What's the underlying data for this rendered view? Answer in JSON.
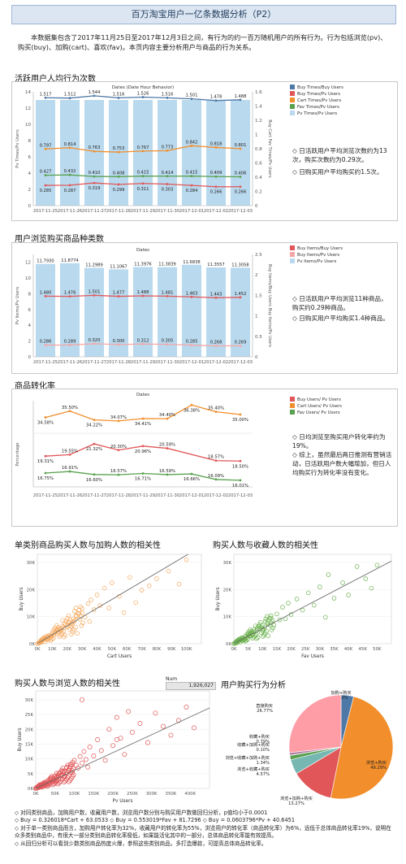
{
  "page": {
    "title": "百万淘宝用户一亿条数据分析（P2）",
    "intro": "本数据集包含了2017年11月25日至2017年12月3日之间，有行为的约一百万随机用户的所有行为。行为包括浏览(pv)、购买(buy)、加购(cart)、喜欢(fav)。本页内容主要分析用户与商品的行为关系。"
  },
  "sections": {
    "s1": "活跃用户人均行为次数",
    "s2": "用户浏览购买商品种类数",
    "s3": "商品转化率",
    "s4": "单类别商品购买人数与加购人数的相关性",
    "s5": "购买人数与收藏人数的相关性",
    "s6": "购买人数与浏览人数的相关性",
    "s7": "用户购买行为分析"
  },
  "notes": {
    "n1": "◇ 日活跃用户平均浏览次数约为13次，购买次数约为0.29次。",
    "n2": "◇ 日购买用户平均购买约1.5次。",
    "n3": "◇ 日活跃用户平均浏览11种商品，购买约0.29种商品。",
    "n4": "◇ 日购买用户平均购买1.4种商品。",
    "n5": "◇ 日均浏览至购买用户转化率约为19%。",
    "n6": "◇ 综上，虽然最后两日推测有营销活动，日活跃用户数大幅增加，但日人均购买行为转化率没有变化。"
  },
  "num_legend": {
    "label": "Num",
    "value": "1,926,027"
  },
  "footer": [
    "◇ 对同类别商品，加购用户数，收藏用户数，浏览用户数分别与购买用户数做回归分析，p值均小于0.0001",
    "◇ Buy = 0.326018*Cart + 63.0533  ◇ Buy = 0.553019*Fav + 81.7296  ◇ Buy = 0.0603796*Pv + 40.6451",
    "◇ 对于单一类别商品而言，加购用户转化率为32%，收藏用户的转化率为55%，浏览用户的转化率（商品转化率）为6%，远低于总体商品转化率19%，说明在众多类别商品中，有很大一部分类别商品转化率极低，如果能活化其中的一部分，总体商品转化率能有效提高。",
    "◇ 从回归分析可以看到少数类别商品热度火爆，参照这些类别商品，多打造爆款，可提高总体商品转化率。"
  ],
  "chart_data": [
    {
      "type": "line",
      "title": "Dates (Date Hour Behavior)",
      "categories": [
        "2017-11-25",
        "2017-11-26",
        "2017-11-27",
        "2017-11-28",
        "2017-11-29",
        "2017-11-30",
        "2017-12-01",
        "2017-12-02",
        "2017-12-03"
      ],
      "ylabel": "Pv Times/Pv Users",
      "y2label": "Buy Cart Fav Times/Pv Users",
      "ylim": [
        0,
        14
      ],
      "y2lim": [
        0,
        1.6
      ],
      "bars": {
        "name": "Pv Times/Pv Users",
        "values": [
          13,
          13,
          13,
          13,
          13,
          13,
          13,
          13,
          13
        ],
        "color": "#b9d9ee"
      },
      "series": [
        {
          "name": "Buy Times/Buy Users",
          "axis": "y2",
          "values": [
            1.517,
            1.512,
            1.544,
            1.516,
            1.526,
            1.516,
            1.501,
            1.478,
            1.488
          ],
          "color": "#4e79a7"
        },
        {
          "name": "Buy Times/Pv Users",
          "axis": "y2",
          "values": [
            0.285,
            0.287,
            0.319,
            0.299,
            0.311,
            0.303,
            0.284,
            0.266,
            0.266
          ],
          "color": "#e15759"
        },
        {
          "name": "Cart Times/Pv Users",
          "axis": "y2",
          "values": [
            0.797,
            0.814,
            0.763,
            0.753,
            0.767,
            0.773,
            0.842,
            0.818,
            0.801
          ],
          "color": "#f28e2b"
        },
        {
          "name": "Fav Times/Pv Users",
          "axis": "y2",
          "values": [
            0.427,
            0.432,
            0.41,
            0.408,
            0.415,
            0.414,
            0.415,
            0.409,
            0.406
          ],
          "color": "#59a14f"
        }
      ],
      "legend": [
        "Buy Times/Buy Users",
        "Buy Times/Pv Users",
        "Cart Times/Pv Users",
        "Fav Times/Pv Users",
        "Pv Times/Pv Users"
      ]
    },
    {
      "type": "line",
      "title": "Dates",
      "categories": [
        "2017-11-25",
        "2017-11-26",
        "2017-11-27",
        "2017-11-28",
        "2017-11-29",
        "2017-11-30",
        "2017-12-01",
        "2017-12-02",
        "2017-12-03"
      ],
      "ylabel": "Pv Items/Pv Users",
      "y2label": "Buy Items/Buy Users  Buy Items/Pv Users",
      "ylim": [
        0,
        13
      ],
      "y2lim": [
        0,
        2.5
      ],
      "bars": {
        "name": "Pv Items/Pv Users",
        "values": [
          11.793,
          11.8774,
          11.2989,
          11.1067,
          11.3976,
          11.3839,
          11.6838,
          11.3557,
          11.3058
        ],
        "color": "#b9d9ee"
      },
      "series": [
        {
          "name": "Buy Items/Buy Users",
          "axis": "y2",
          "values": [
            1.48,
            1.476,
            1.501,
            1.477,
            1.488,
            1.481,
            1.463,
            1.443,
            1.452
          ],
          "color": "#e15759"
        },
        {
          "name": "Buy Items/Pv Users",
          "axis": "y2",
          "values": [
            0.286,
            0.289,
            0.32,
            0.3,
            0.312,
            0.305,
            0.285,
            0.268,
            0.269
          ],
          "color": "#f4a6a6"
        }
      ],
      "legend": [
        "Buy Items/Buy Users",
        "Buy Items/Pv Users",
        "Pv Items/Pv Users"
      ]
    },
    {
      "type": "line",
      "title": "Dates",
      "categories": [
        "2017-11-25",
        "2017-11-26",
        "2017-11-27",
        "2017-11-28",
        "2017-11-29",
        "2017-11-30",
        "2017-12-01",
        "2017-12-02",
        "2017-12-03"
      ],
      "ylabel": "Percentage",
      "series": [
        {
          "name": "Buy Users/ Pv Users",
          "values": [
            19.31,
            19.55,
            21.32,
            20.3,
            20.96,
            20.59,
            null,
            18.57,
            18.5
          ],
          "color": "#e15759"
        },
        {
          "name": "Cart Users/ Pv Users",
          "values": [
            34.58,
            35.5,
            34.22,
            34.07,
            34.41,
            34.4,
            36.38,
            35.4,
            35.0
          ],
          "color": "#f28e2b"
        },
        {
          "name": "Fav Users/ Pv Users",
          "values": [
            16.75,
            16.91,
            16.6,
            16.57,
            16.71,
            16.59,
            16.66,
            16.09,
            16.01
          ],
          "color": "#59a14f"
        }
      ],
      "legend": [
        "Buy Users/ Pv Users",
        "Cart Users/ Pv Users",
        "Fav Users/ Pv Users"
      ]
    },
    {
      "type": "scatter",
      "xlabel": "Cart Users",
      "ylabel": "Buy Users",
      "xlim": [
        0,
        110000
      ],
      "ylim": [
        0,
        33000
      ],
      "xticks": [
        "0K",
        "10K",
        "20K",
        "30K",
        "40K",
        "50K",
        "60K",
        "70K",
        "80K",
        "90K",
        "100K"
      ],
      "yticks": [
        "0K",
        "10K",
        "20K",
        "30K"
      ],
      "fit": {
        "slope": 0.326018,
        "intercept": 63.0533
      },
      "color": "#f5a85e",
      "points": [
        [
          1500,
          600
        ],
        [
          2500,
          1100
        ],
        [
          3000,
          900
        ],
        [
          4000,
          1500
        ],
        [
          5000,
          2100
        ],
        [
          6000,
          1800
        ],
        [
          7000,
          2600
        ],
        [
          8000,
          3100
        ],
        [
          9000,
          2800
        ],
        [
          10000,
          3800
        ],
        [
          11000,
          3200
        ],
        [
          12000,
          4200
        ],
        [
          13000,
          4900
        ],
        [
          14000,
          4400
        ],
        [
          15000,
          5600
        ],
        [
          16000,
          5000
        ],
        [
          17000,
          6400
        ],
        [
          18000,
          5800
        ],
        [
          19000,
          7000
        ],
        [
          20000,
          6200
        ],
        [
          21000,
          8000
        ],
        [
          22000,
          6800
        ],
        [
          23000,
          7600
        ],
        [
          24000,
          9200
        ],
        [
          25000,
          8500
        ],
        [
          26000,
          10500
        ],
        [
          28000,
          11200
        ],
        [
          30000,
          13000
        ],
        [
          32000,
          9800
        ],
        [
          34000,
          14800
        ],
        [
          35000,
          8200
        ],
        [
          36000,
          16200
        ],
        [
          38000,
          12600
        ],
        [
          40000,
          18000
        ],
        [
          42000,
          14100
        ],
        [
          45000,
          20500
        ],
        [
          48000,
          13200
        ],
        [
          50000,
          22500
        ],
        [
          55000,
          17500
        ],
        [
          58000,
          11500
        ],
        [
          62000,
          24500
        ],
        [
          66000,
          15200
        ],
        [
          70000,
          19800
        ],
        [
          75000,
          21400
        ],
        [
          80000,
          24000
        ],
        [
          88000,
          26800
        ],
        [
          95000,
          22000
        ],
        [
          100000,
          31000
        ]
      ]
    },
    {
      "type": "scatter",
      "xlabel": "Fav Users",
      "ylabel": "Buy Users",
      "xlim": [
        0,
        55000
      ],
      "ylim": [
        0,
        33000
      ],
      "xticks": [
        "0K",
        "5K",
        "10K",
        "15K",
        "20K",
        "25K",
        "30K",
        "35K",
        "40K",
        "45K",
        "50K"
      ],
      "yticks": [
        "0K",
        "10K",
        "20K",
        "30K"
      ],
      "fit": {
        "slope": 0.553019,
        "intercept": 81.7296
      },
      "color": "#6ab04c",
      "points": [
        [
          500,
          500
        ],
        [
          1000,
          1000
        ],
        [
          1500,
          800
        ],
        [
          2000,
          1600
        ],
        [
          2500,
          1300
        ],
        [
          3000,
          2200
        ],
        [
          3500,
          1800
        ],
        [
          4000,
          2800
        ],
        [
          4500,
          2400
        ],
        [
          5000,
          3500
        ],
        [
          5500,
          2900
        ],
        [
          6000,
          4200
        ],
        [
          6500,
          3600
        ],
        [
          7000,
          5200
        ],
        [
          8000,
          4800
        ],
        [
          9000,
          6500
        ],
        [
          10000,
          5400
        ],
        [
          11000,
          8200
        ],
        [
          12000,
          7100
        ],
        [
          13000,
          9500
        ],
        [
          14000,
          6900
        ],
        [
          15000,
          11000
        ],
        [
          16000,
          8800
        ],
        [
          17000,
          13500
        ],
        [
          18000,
          9200
        ],
        [
          19000,
          15000
        ],
        [
          20000,
          10800
        ],
        [
          22000,
          16500
        ],
        [
          24000,
          12400
        ],
        [
          26000,
          18800
        ],
        [
          28000,
          14200
        ],
        [
          30000,
          21000
        ],
        [
          32000,
          9800
        ],
        [
          33000,
          25500
        ],
        [
          35000,
          16800
        ],
        [
          38000,
          22500
        ],
        [
          40000,
          18000
        ],
        [
          43000,
          28500
        ],
        [
          46000,
          24000
        ],
        [
          48000,
          20500
        ],
        [
          50000,
          29000
        ]
      ]
    },
    {
      "type": "scatter",
      "xlabel": "Pv Users",
      "ylabel": "Buy Users",
      "xlim": [
        0,
        450000
      ],
      "ylim": [
        0,
        33000
      ],
      "xticks": [
        "0K",
        "50K",
        "100K",
        "150K",
        "200K",
        "250K",
        "300K",
        "350K",
        "400K"
      ],
      "yticks": [
        "0K",
        "5K",
        "10K",
        "15K",
        "20K",
        "25K",
        "30K"
      ],
      "fit": {
        "slope": 0.0603796,
        "intercept": 40.6451
      },
      "color": "#e15759",
      "points": [
        [
          5000,
          600
        ],
        [
          10000,
          1200
        ],
        [
          15000,
          900
        ],
        [
          20000,
          1800
        ],
        [
          25000,
          1400
        ],
        [
          30000,
          2500
        ],
        [
          35000,
          2100
        ],
        [
          40000,
          3400
        ],
        [
          45000,
          2800
        ],
        [
          50000,
          4200
        ],
        [
          55000,
          3600
        ],
        [
          60000,
          5000
        ],
        [
          65000,
          4400
        ],
        [
          70000,
          5800
        ],
        [
          75000,
          3900
        ],
        [
          80000,
          7000
        ],
        [
          85000,
          6200
        ],
        [
          90000,
          8200
        ],
        [
          95000,
          5400
        ],
        [
          100000,
          9500
        ],
        [
          105000,
          7800
        ],
        [
          110000,
          6900
        ],
        [
          115000,
          10800
        ],
        [
          120000,
          8600
        ],
        [
          125000,
          12500
        ],
        [
          130000,
          9800
        ],
        [
          135000,
          7200
        ],
        [
          140000,
          14000
        ],
        [
          150000,
          11000
        ],
        [
          160000,
          16500
        ],
        [
          170000,
          12800
        ],
        [
          180000,
          9500
        ],
        [
          190000,
          20000
        ],
        [
          200000,
          14500
        ],
        [
          210000,
          24000
        ],
        [
          220000,
          17000
        ],
        [
          230000,
          11500
        ],
        [
          240000,
          26000
        ],
        [
          250000,
          19000
        ],
        [
          270000,
          22000
        ],
        [
          290000,
          15500
        ],
        [
          310000,
          25500
        ],
        [
          330000,
          21000
        ],
        [
          350000,
          18000
        ],
        [
          370000,
          23000
        ],
        [
          390000,
          27500
        ],
        [
          410000,
          20500
        ],
        [
          120000,
          30000
        ],
        [
          210000,
          16500
        ]
      ]
    },
    {
      "type": "pie",
      "slices": [
        {
          "label": "加购+购买",
          "value": 3.92,
          "color": "#4e79a7",
          "display": "3.92%"
        },
        {
          "label": "浏览+购买",
          "value": 49.29,
          "color": "#f28e2b",
          "display": "49.29%"
        },
        {
          "label": "浏览+加购+购买",
          "value": 13.27,
          "color": "#e15759",
          "display": "13.27%"
        },
        {
          "label": "浏览+收藏+购买",
          "value": 4.57,
          "color": "#76b7b2",
          "display": "4.57%"
        },
        {
          "label": "浏览+收藏+加购+购买",
          "value": 1.34,
          "color": "#59a14f",
          "display": "1.34%"
        },
        {
          "label": "收藏+加购+购买",
          "value": 0.1,
          "color": "#edc948",
          "display": "0.10%"
        },
        {
          "label": "收藏+购买",
          "value": 0.79,
          "color": "#b07aa1",
          "display": "0.79%"
        },
        {
          "label": "直接购买",
          "value": 26.77,
          "color": "#ff9da7",
          "display": "26.77%"
        }
      ]
    }
  ]
}
